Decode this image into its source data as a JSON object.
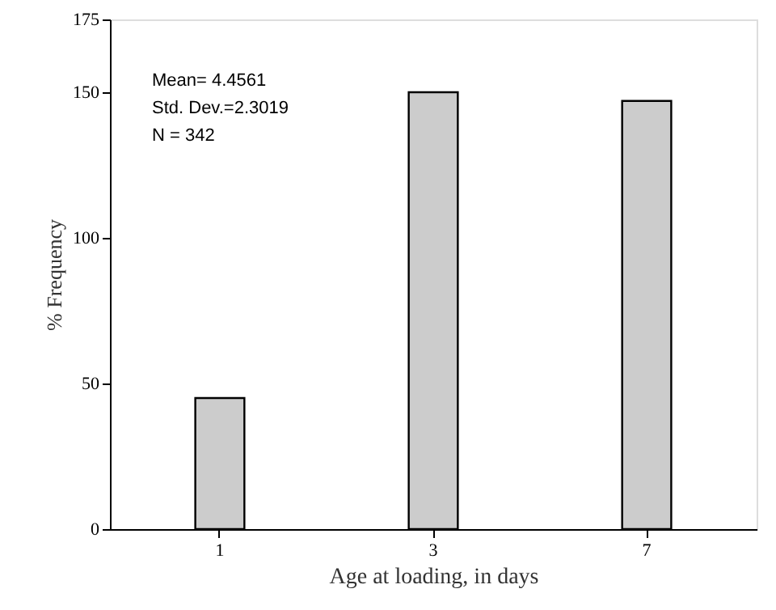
{
  "chart_data": {
    "type": "bar",
    "xlabel": "Age at loading, in days",
    "ylabel": "% Frequency",
    "categories": [
      "1",
      "3",
      "7"
    ],
    "values": [
      45,
      150,
      147
    ],
    "color": "#cccccc",
    "ylim": [
      0,
      175
    ],
    "yticks": [
      0,
      50,
      100,
      150,
      175
    ],
    "grid": false,
    "annotations": [
      "Mean= 4.4561",
      "Std. Dev.=2.3019",
      "N = 342"
    ]
  }
}
